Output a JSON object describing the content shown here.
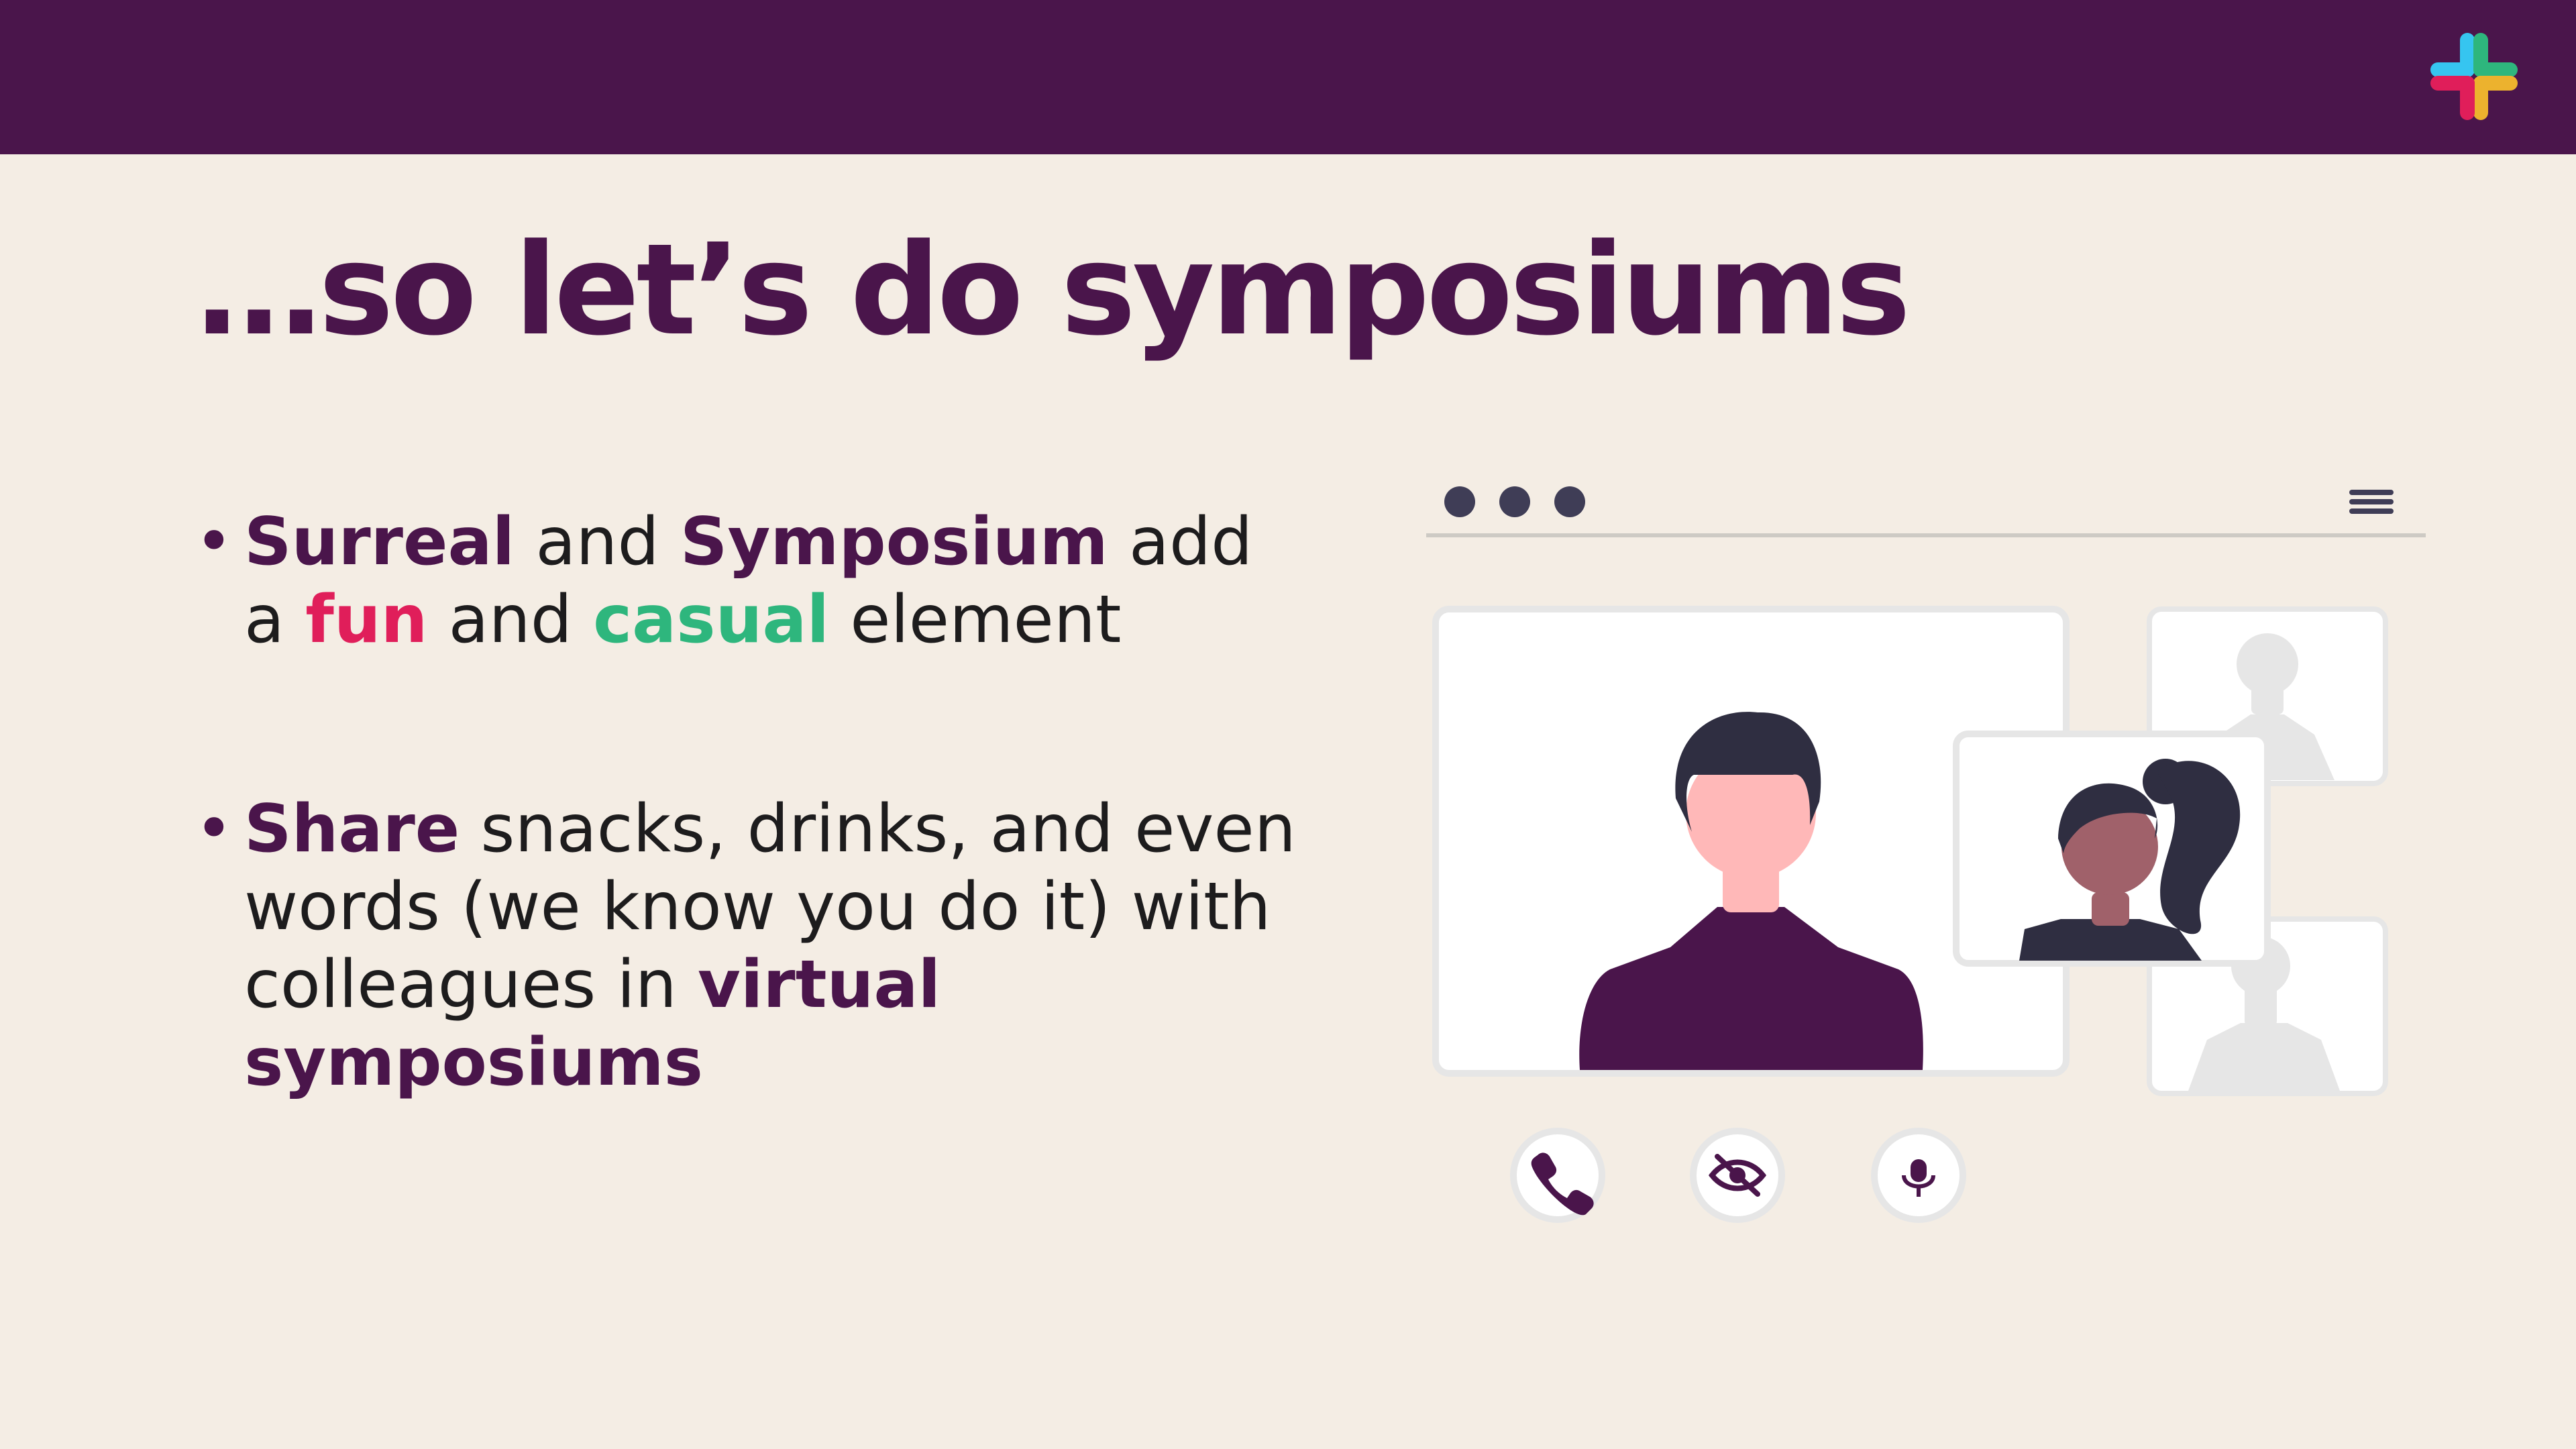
{
  "slide": {
    "title": "…so let’s do symposiums",
    "bullets": [
      {
        "parts": [
          "Surreal",
          " and ",
          "Symposium",
          " add a ",
          "fun",
          " and ",
          "casual",
          " element"
        ]
      },
      {
        "parts": [
          "Share",
          " snacks, drinks, and even words (we know you do it) with colleagues in ",
          "virtual symposiums"
        ]
      }
    ]
  },
  "colors": {
    "top_bar": "#4a154b",
    "background": "#f4ede4",
    "accent_pink": "#e01e5a",
    "accent_green": "#2eb67d"
  },
  "icons": {
    "logo": "slack-logo-icon",
    "menu": "hamburger-menu-icon",
    "call": "phone-icon",
    "video": "eye-off-icon",
    "mic": "microphone-icon"
  }
}
